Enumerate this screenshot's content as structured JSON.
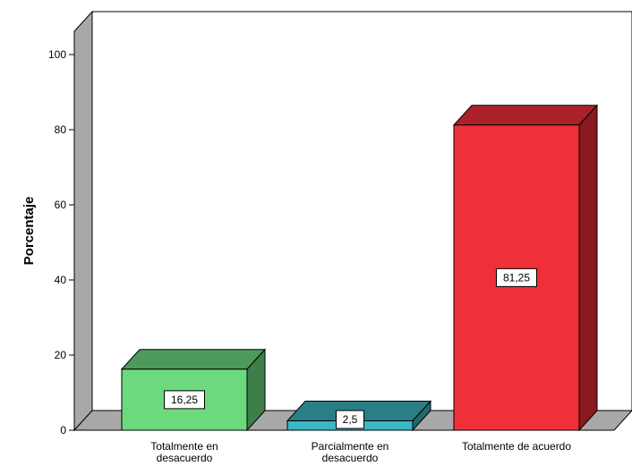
{
  "chart_data": {
    "type": "bar",
    "title": "",
    "xlabel": "",
    "ylabel": "Porcentaje",
    "ylim": [
      0,
      100
    ],
    "yticks": [
      0,
      20,
      40,
      60,
      80,
      100
    ],
    "grid": false,
    "categories": [
      [
        "Totalmente en",
        "desacuerdo"
      ],
      [
        "Parcialmente en",
        "desacuerdo"
      ],
      [
        "Totalmente de acuerdo"
      ]
    ],
    "values": [
      16.25,
      2.5,
      81.25
    ],
    "value_labels": [
      "16,25",
      "2,5",
      "81,25"
    ],
    "colors": [
      {
        "front": "#6dd97e",
        "top": "#4d9a5a",
        "side": "#3e7f49"
      },
      {
        "front": "#3ab8c4",
        "top": "#2a7f86",
        "side": "#1f6a70"
      },
      {
        "front": "#ef3038",
        "top": "#aa2228",
        "side": "#8a1a20"
      }
    ]
  }
}
